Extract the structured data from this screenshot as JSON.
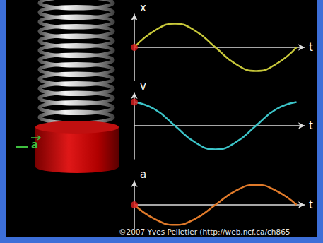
{
  "chart_data": [
    {
      "type": "line",
      "y_label": "x",
      "x_label": "t",
      "color": "#c8c83a",
      "x": [
        0,
        0.5,
        1,
        1.5,
        2,
        2.5,
        3,
        3.5,
        4
      ],
      "values": [
        0,
        0.7,
        1,
        0.7,
        0,
        -0.7,
        -1,
        -0.7,
        0
      ],
      "xlim": [
        0,
        4.2
      ],
      "ylim": [
        -1.4,
        1.4
      ],
      "tick_labels": false,
      "grid": false,
      "point": {
        "t": 0,
        "value": 0,
        "color": "#e02020"
      }
    },
    {
      "type": "line",
      "y_label": "v",
      "x_label": "t",
      "color": "#3cc4c8",
      "x": [
        0,
        0.5,
        1,
        1.5,
        2,
        2.5,
        3,
        3.5,
        4
      ],
      "values": [
        1,
        0.7,
        0,
        -0.7,
        -1,
        -0.7,
        0,
        0.7,
        1
      ],
      "xlim": [
        0,
        4.2
      ],
      "ylim": [
        -1.4,
        1.4
      ],
      "tick_labels": false,
      "grid": false,
      "point": {
        "t": 0,
        "value": 1,
        "color": "#e02020"
      }
    },
    {
      "type": "line",
      "y_label": "a",
      "x_label": "t",
      "color": "#e07a2a",
      "x": [
        0,
        0.5,
        1,
        1.5,
        2,
        2.5,
        3,
        3.5,
        4
      ],
      "values": [
        0,
        -0.7,
        -1,
        -0.7,
        0,
        0.7,
        1,
        0.7,
        0
      ],
      "xlim": [
        0,
        4.2
      ],
      "ylim": [
        -1.2,
        1.2
      ],
      "tick_labels": false,
      "grid": false,
      "point": {
        "t": 0,
        "value": 0,
        "color": "#e02020"
      }
    }
  ],
  "diagram": {
    "mass_label": "a",
    "credit": "©2007 Yves Pelletier (http://web.ncf.ca/ch865"
  }
}
